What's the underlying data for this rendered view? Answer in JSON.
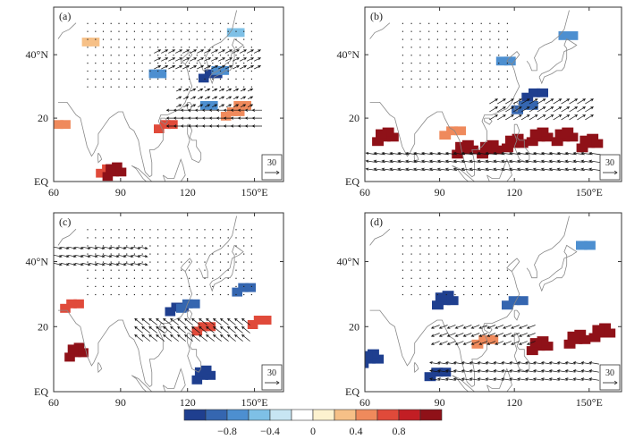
{
  "figure": {
    "panels": [
      {
        "id": "a",
        "label": "(a)"
      },
      {
        "id": "b",
        "label": "(b)"
      },
      {
        "id": "c",
        "label": "(c)"
      },
      {
        "id": "d",
        "label": "(d)"
      }
    ],
    "lon_ticks": [
      "60",
      "90",
      "120",
      "150°E"
    ],
    "lat_ticks": [
      "EQ",
      "20",
      "40°N"
    ],
    "reference_vector": "30",
    "colorbar": {
      "colors": [
        "#1f3f8f",
        "#3566b0",
        "#4d8fd0",
        "#7ec0e6",
        "#c7e5f3",
        "#ffffff",
        "#fdf2cf",
        "#f6c087",
        "#ef8a5c",
        "#e04a3a",
        "#c21e24",
        "#8f1118"
      ],
      "tick_labels": [
        "−0.8",
        "−0.4",
        "0",
        "0.4",
        "0.8"
      ]
    }
  },
  "chart_data": {
    "type": "map",
    "description_fields": "correlation shading with wind vectors",
    "lon_range": [
      60,
      160
    ],
    "lat_range": [
      0,
      55
    ],
    "lon_ticks": [
      60,
      90,
      120,
      150
    ],
    "lat_ticks": [
      0,
      20,
      40
    ],
    "colorbar_levels": [
      -1.0,
      -0.8,
      -0.6,
      -0.4,
      -0.2,
      0,
      0.2,
      0.4,
      0.6,
      0.8,
      1.0
    ],
    "panels": {
      "a": {
        "shading": [
          {
            "lon": 84,
            "lat": 4,
            "v": 0.8
          },
          {
            "lon": 87,
            "lat": 3,
            "v": 0.9
          },
          {
            "lon": 110,
            "lat": 18,
            "v": 0.8
          },
          {
            "lon": 128,
            "lat": 24,
            "v": -0.5
          },
          {
            "lon": 130,
            "lat": 34,
            "v": -0.8
          },
          {
            "lon": 133,
            "lat": 35,
            "v": -0.5
          },
          {
            "lon": 140,
            "lat": 22,
            "v": 0.6
          },
          {
            "lon": 143,
            "lat": 24,
            "v": 0.5
          },
          {
            "lon": 62,
            "lat": 18,
            "v": 0.5
          },
          {
            "lon": 140,
            "lat": 47,
            "v": -0.3
          },
          {
            "lon": 75,
            "lat": 44,
            "v": 0.4
          },
          {
            "lon": 105,
            "lat": 34,
            "v": -0.4
          }
        ],
        "wind": [
          {
            "lat": 20,
            "lon_from": 115,
            "lon_to": 155,
            "u": -12,
            "v": 0
          },
          {
            "lat": 26,
            "lon_from": 115,
            "lon_to": 150,
            "u": 6,
            "v": 3
          },
          {
            "lat": 38,
            "lon_from": 105,
            "lon_to": 150,
            "u": 8,
            "v": 4
          }
        ]
      },
      "b": {
        "shading": [
          {
            "lon": 100,
            "lat": 10,
            "v": 0.9
          },
          {
            "lon": 110,
            "lat": 10,
            "v": 1.0
          },
          {
            "lon": 120,
            "lat": 12,
            "v": 0.9
          },
          {
            "lon": 130,
            "lat": 14,
            "v": 1.0
          },
          {
            "lon": 140,
            "lat": 14,
            "v": 0.9
          },
          {
            "lon": 150,
            "lat": 12,
            "v": 0.9
          },
          {
            "lon": 95,
            "lat": 16,
            "v": 0.6
          },
          {
            "lon": 68,
            "lat": 14,
            "v": 0.9
          },
          {
            "lon": 128,
            "lat": 28,
            "v": -0.8
          },
          {
            "lon": 124,
            "lat": 24,
            "v": -0.6
          },
          {
            "lon": 115,
            "lat": 38,
            "v": -0.5
          },
          {
            "lon": 140,
            "lat": 46,
            "v": -0.4
          }
        ],
        "wind": [
          {
            "lat": 6,
            "lon_from": 65,
            "lon_to": 155,
            "u": -14,
            "v": 2
          },
          {
            "lat": 22,
            "lon_from": 110,
            "lon_to": 150,
            "u": 10,
            "v": 6
          }
        ]
      },
      "c": {
        "shading": [
          {
            "lon": 115,
            "lat": 26,
            "v": -0.8
          },
          {
            "lon": 120,
            "lat": 27,
            "v": -0.6
          },
          {
            "lon": 145,
            "lat": 32,
            "v": -0.7
          },
          {
            "lon": 152,
            "lat": 22,
            "v": 0.8
          },
          {
            "lon": 127,
            "lat": 5,
            "v": -0.9
          },
          {
            "lon": 68,
            "lat": 27,
            "v": 0.8
          },
          {
            "lon": 70,
            "lat": 12,
            "v": 0.9
          },
          {
            "lon": 127,
            "lat": 20,
            "v": 0.7
          }
        ],
        "wind": [
          {
            "lat": 42,
            "lon_from": 60,
            "lon_to": 100,
            "u": 10,
            "v": -2
          },
          {
            "lat": 18,
            "lon_from": 100,
            "lon_to": 150,
            "u": -10,
            "v": 8
          }
        ]
      },
      "d": {
        "shading": [
          {
            "lon": 62,
            "lat": 10,
            "v": -0.9
          },
          {
            "lon": 89,
            "lat": 6,
            "v": -0.8
          },
          {
            "lon": 120,
            "lat": 28,
            "v": -0.7
          },
          {
            "lon": 92,
            "lat": 28,
            "v": -0.9
          },
          {
            "lon": 130,
            "lat": 14,
            "v": 0.9
          },
          {
            "lon": 145,
            "lat": 16,
            "v": 1.0
          },
          {
            "lon": 155,
            "lat": 18,
            "v": 0.9
          },
          {
            "lon": 108,
            "lat": 16,
            "v": 0.6
          },
          {
            "lon": 147,
            "lat": 45,
            "v": -0.4
          }
        ],
        "wind": [
          {
            "lat": 6,
            "lon_from": 90,
            "lon_to": 155,
            "u": -12,
            "v": 2
          },
          {
            "lat": 18,
            "lon_from": 90,
            "lon_to": 130,
            "u": -10,
            "v": -4
          }
        ]
      }
    }
  }
}
